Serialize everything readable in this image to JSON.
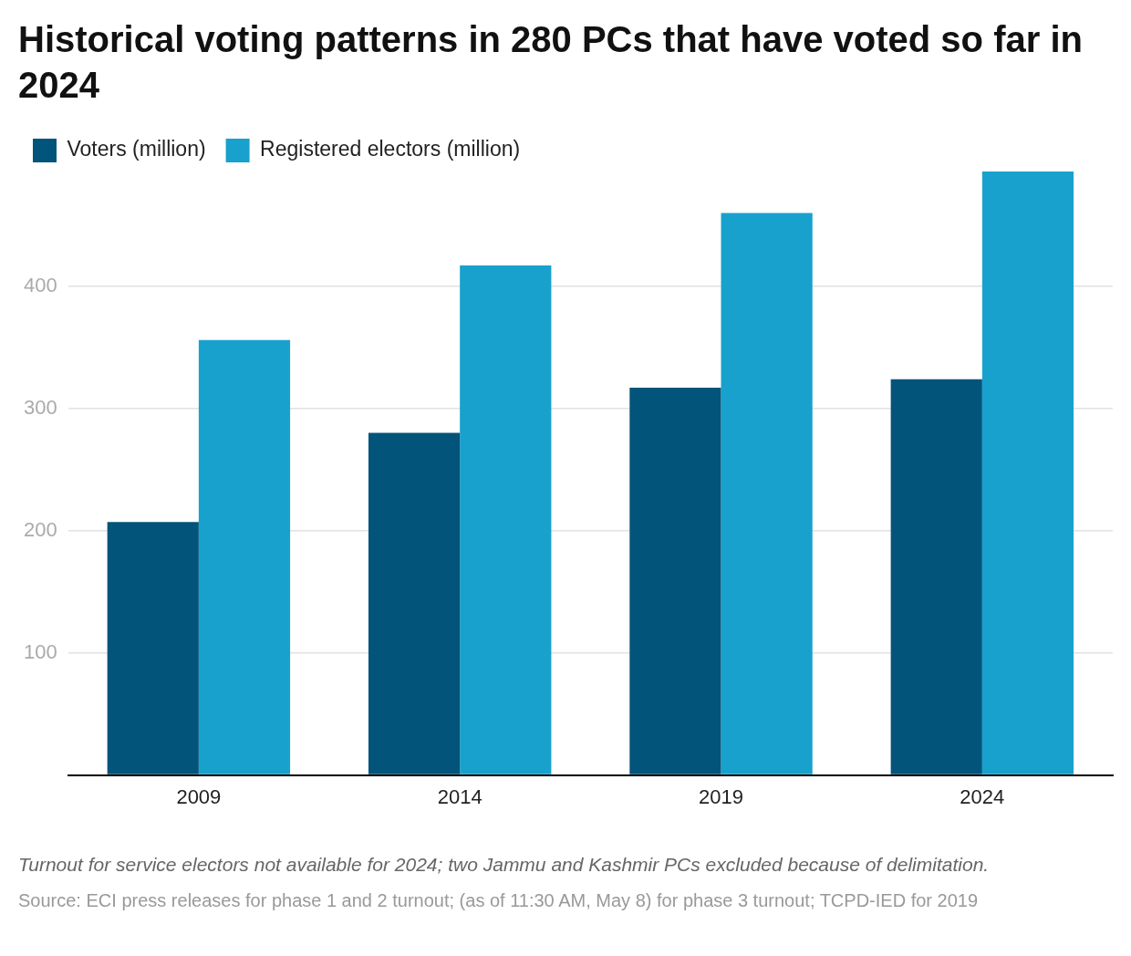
{
  "chart_data": {
    "type": "bar",
    "title": "Historical voting patterns in 280 PCs that have voted so far in 2024",
    "categories": [
      "2009",
      "2014",
      "2019",
      "2024"
    ],
    "series": [
      {
        "name": "Voters (million)",
        "color": "#03547a",
        "values": [
          207,
          280,
          317,
          324
        ]
      },
      {
        "name": "Registered electors (million)",
        "color": "#18a1cd",
        "values": [
          356,
          417,
          460,
          494
        ]
      }
    ],
    "yticks": [
      {
        "value": 0,
        "label": null
      },
      100,
      200,
      300,
      400
    ],
    "ylim": [
      0,
      494
    ],
    "grid": "y",
    "legend": "top left",
    "annotations": [
      "Turnout for service electors not available for 2024; two Jammu and Kashmir PCs excluded because of delimitation.",
      "Source: ECI press releases for phase 1 and 2 turnout; (as of 11:30 AM, May 8) for phase 3 turnout; TCPD-IED for 2019"
    ]
  }
}
